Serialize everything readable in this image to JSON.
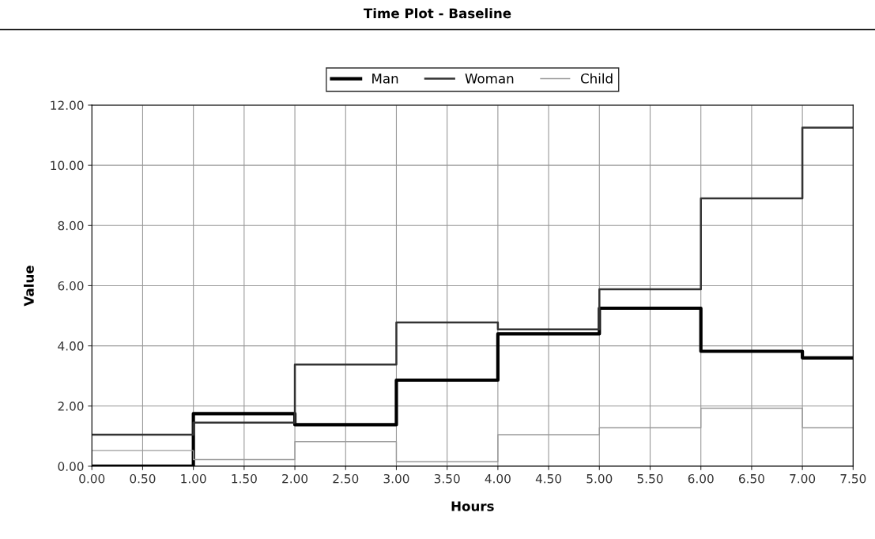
{
  "chart_data": {
    "type": "step",
    "title": "Time Plot - Baseline",
    "xlabel": "Hours",
    "ylabel": "Value",
    "x": [
      0,
      1,
      2,
      3,
      4,
      5,
      6,
      7,
      7.5
    ],
    "series": [
      {
        "name": "Man",
        "color": "#000000",
        "values": [
          0.0,
          1.75,
          1.38,
          2.86,
          4.4,
          5.25,
          3.82,
          3.6,
          3.6
        ]
      },
      {
        "name": "Woman",
        "color": "#333333",
        "values": [
          1.05,
          1.45,
          3.38,
          4.78,
          4.55,
          5.88,
          8.9,
          11.25,
          11.25
        ]
      },
      {
        "name": "Child",
        "color": "#9a9a9a",
        "values": [
          0.52,
          0.22,
          0.82,
          0.15,
          1.05,
          1.28,
          1.93,
          1.28,
          1.28
        ]
      }
    ],
    "xlim": [
      0,
      7.5
    ],
    "xticks": [
      {
        "value": 0,
        "label": "0.00"
      },
      {
        "value": 0.5,
        "label": "0.50"
      },
      {
        "value": 1,
        "label": "1.00"
      },
      {
        "value": 1.5,
        "label": "1.50"
      },
      {
        "value": 2,
        "label": "2.00"
      },
      {
        "value": 2.5,
        "label": "2.50"
      },
      {
        "value": 3,
        "label": "3.00"
      },
      {
        "value": 3.5,
        "label": "3.50"
      },
      {
        "value": 4,
        "label": "4.00"
      },
      {
        "value": 4.5,
        "label": "4.50"
      },
      {
        "value": 5,
        "label": "5.00"
      },
      {
        "value": 5.5,
        "label": "5.50"
      },
      {
        "value": 6,
        "label": "6.00"
      },
      {
        "value": 6.5,
        "label": "6.50"
      },
      {
        "value": 7,
        "label": "7.00"
      },
      {
        "value": 7.5,
        "label": "7.50"
      }
    ],
    "ylim": [
      0,
      12
    ],
    "yticks": [
      {
        "value": 0,
        "label": "0.00"
      },
      {
        "value": 2,
        "label": "2.00"
      },
      {
        "value": 4,
        "label": "4.00"
      },
      {
        "value": 6,
        "label": "6.00"
      },
      {
        "value": 8,
        "label": "8.00"
      },
      {
        "value": 10,
        "label": "10.00"
      },
      {
        "value": 12,
        "label": "12.00"
      }
    ],
    "grid": true,
    "legend": "top",
    "line_style": "solid"
  }
}
